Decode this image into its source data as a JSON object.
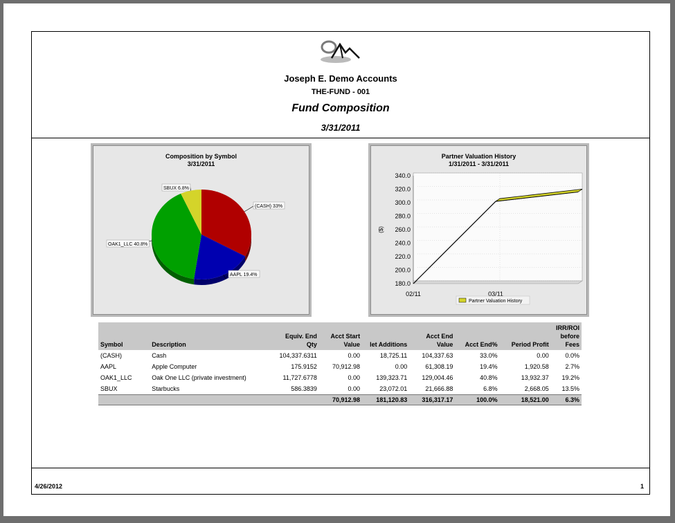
{
  "header": {
    "company": "Joseph E. Demo Accounts",
    "fund": "THE-FUND - 001",
    "title": "Fund Composition",
    "date": "3/31/2011"
  },
  "pie_chart": {
    "title": "Composition by Symbol",
    "subtitle": "3/31/2011"
  },
  "line_chart": {
    "title": "Partner Valuation History",
    "subtitle": "1/31/2011 - 3/31/2011"
  },
  "chart_data": [
    {
      "type": "pie",
      "title": "Composition by Symbol",
      "subtitle": "3/31/2011",
      "labels": [
        "(CASH)",
        "AAPL",
        "OAK1_LLC",
        "SBUX"
      ],
      "values": [
        33.0,
        19.4,
        40.8,
        6.8
      ],
      "slice_labels": [
        "(CASH) 33%",
        "AAPL 19.4%",
        "OAK1_LLC 40.8%",
        "SBUX 6.8%"
      ],
      "colors": [
        "#b00000",
        "#0000b0",
        "#00a000",
        "#d4d42a"
      ]
    },
    {
      "type": "line",
      "title": "Partner Valuation History",
      "subtitle": "1/31/2011 - 3/31/2011",
      "ylabel": "($)",
      "xlabel": "",
      "ylim": [
        180,
        340
      ],
      "yticks": [
        "340.0",
        "320.0",
        "300.0",
        "280.0",
        "260.0",
        "240.0",
        "220.0",
        "200.0",
        "180.0"
      ],
      "xticks": [
        "02/11",
        "03/11"
      ],
      "series": [
        {
          "name": "Partner Valuation History",
          "x": [
            0,
            1,
            2
          ],
          "values": [
            180,
            302,
            316
          ]
        }
      ],
      "legend": "Partner Valuation History",
      "legend_position": "bottom",
      "colors": {
        "area_line": "#000000",
        "ribbon": "#d4d42a"
      }
    }
  ],
  "table": {
    "headers": {
      "symbol": "Symbol",
      "description": "Description",
      "equiv_1": "Equiv. End",
      "equiv_2": "Qty",
      "start_1": "Acct Start",
      "start_2": "Value",
      "net_additions": "let Additions",
      "end_1": "Acct End",
      "end_2": "Value",
      "end_pct": "Acct End%",
      "profit": "Period Profit",
      "irr_1": "IRR/ROI",
      "irr_2": "before",
      "irr_3": "Fees"
    },
    "rows": [
      {
        "symbol": "(CASH)",
        "description": "Cash",
        "qty": "104,337.6311",
        "start": "0.00",
        "additions": "18,725.11",
        "end": "104,337.63",
        "pct": "33.0%",
        "profit": "0.00",
        "irr": "0.0%"
      },
      {
        "symbol": "AAPL",
        "description": "Apple Computer",
        "qty": "175.9152",
        "start": "70,912.98",
        "additions": "0.00",
        "end": "61,308.19",
        "pct": "19.4%",
        "profit": "1,920.58",
        "irr": "2.7%"
      },
      {
        "symbol": "OAK1_LLC",
        "description": "Oak One LLC (private investment)",
        "qty": "11,727.6778",
        "start": "0.00",
        "additions": "139,323.71",
        "end": "129,004.46",
        "pct": "40.8%",
        "profit": "13,932.37",
        "irr": "19.2%"
      },
      {
        "symbol": "SBUX",
        "description": "Starbucks",
        "qty": "586.3839",
        "start": "0.00",
        "additions": "23,072.01",
        "end": "21,666.88",
        "pct": "6.8%",
        "profit": "2,668.05",
        "irr": "13.5%"
      }
    ],
    "totals": {
      "start": "70,912.98",
      "additions": "181,120.83",
      "end": "316,317.17",
      "pct": "100.0%",
      "profit": "18,521.00",
      "irr": "6.3%"
    }
  },
  "footer": {
    "date": "4/26/2012",
    "page": "1"
  }
}
